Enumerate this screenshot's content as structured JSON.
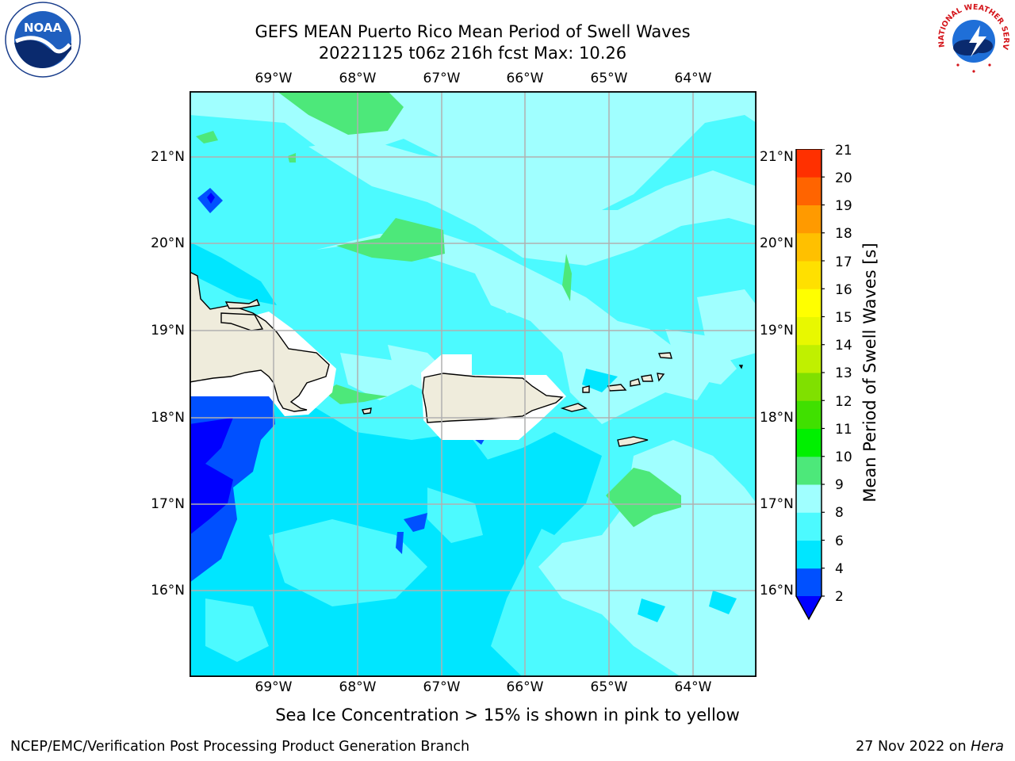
{
  "header": {
    "title_line1": "GEFS MEAN Puerto Rico Mean Period of Swell Waves",
    "title_line2": "20221125 t06z 216h fcst   Max: 10.26"
  },
  "logos": {
    "noaa_text": "NOAA",
    "noaa_ring_text": "NATIONAL OCEANIC AND ATMOSPHERIC ADMINISTRATION · U.S. DEPARTMENT OF COMMERCE",
    "nws_ring_text": "NATIONAL WEATHER SERVICE"
  },
  "map": {
    "lon_labels": [
      "69°W",
      "68°W",
      "67°W",
      "66°W",
      "65°W",
      "64°W"
    ],
    "lat_labels": [
      "21°N",
      "20°N",
      "19°N",
      "18°N",
      "17°N",
      "16°N"
    ],
    "land_color": "#efecdc",
    "grid_color": "#b0b0b0"
  },
  "colorbar": {
    "title": "Mean Period of Swell Waves [s]",
    "levels": [
      "2",
      "4",
      "6",
      "8",
      "9",
      "10",
      "11",
      "12",
      "13",
      "14",
      "15",
      "16",
      "17",
      "18",
      "19",
      "20",
      "21"
    ],
    "colors": [
      "#0050ff",
      "#00e6ff",
      "#4cfaff",
      "#a0ffff",
      "#4de87a",
      "#00f000",
      "#40e000",
      "#80e000",
      "#c0f000",
      "#e8f800",
      "#ffff00",
      "#ffe000",
      "#ffc000",
      "#ff9a00",
      "#ff6400",
      "#ff3000"
    ],
    "under_color": "#0000ff"
  },
  "note": "Sea Ice Concentration > 15% is shown in pink to yellow",
  "footer": {
    "left": "NCEP/EMC/Verification Post Processing Product Generation Branch",
    "date": "27 Nov 2022 on ",
    "machine": "Hera"
  }
}
